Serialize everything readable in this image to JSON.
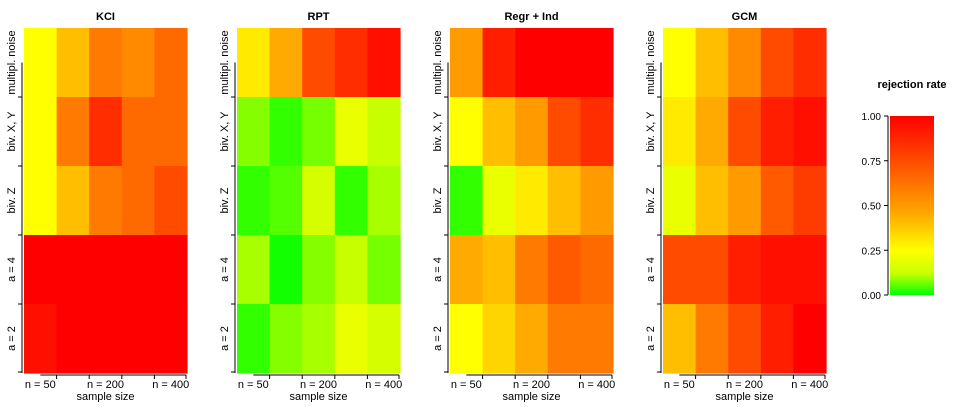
{
  "chart_data": {
    "type": "heatmap",
    "x_categories": [
      "n = 50",
      "",
      "n = 200",
      "",
      "n = 400"
    ],
    "x_ticks": [
      "n = 50",
      "n = 200",
      "n = 400"
    ],
    "y_categories": [
      "multipl. noise",
      "biv. X, Y",
      "biv. Z",
      "a = 4",
      "a = 2"
    ],
    "xlabel": "sample size",
    "panels": [
      {
        "title": "KCI",
        "values": [
          [
            0.25,
            0.4,
            0.6,
            0.55,
            0.65
          ],
          [
            0.25,
            0.6,
            0.85,
            0.65,
            0.65
          ],
          [
            0.25,
            0.4,
            0.6,
            0.65,
            0.75
          ],
          [
            1.0,
            1.0,
            1.0,
            1.0,
            1.0
          ],
          [
            0.95,
            1.0,
            1.0,
            1.0,
            1.0
          ]
        ]
      },
      {
        "title": "RPT",
        "values": [
          [
            0.3,
            0.45,
            0.75,
            0.85,
            0.95
          ],
          [
            0.08,
            0.03,
            0.07,
            0.2,
            0.12
          ],
          [
            0.03,
            0.05,
            0.15,
            0.03,
            0.1
          ],
          [
            0.1,
            0.01,
            0.08,
            0.12,
            0.07
          ],
          [
            0.03,
            0.08,
            0.1,
            0.2,
            0.15
          ]
        ]
      },
      {
        "title": "Regr + Ind",
        "values": [
          [
            0.5,
            0.9,
            1.0,
            1.0,
            1.0
          ],
          [
            0.25,
            0.4,
            0.5,
            0.75,
            0.85
          ],
          [
            0.03,
            0.2,
            0.3,
            0.4,
            0.5
          ],
          [
            0.45,
            0.4,
            0.6,
            0.7,
            0.65
          ],
          [
            0.25,
            0.35,
            0.45,
            0.6,
            0.6
          ]
        ]
      },
      {
        "title": "GCM",
        "values": [
          [
            0.25,
            0.4,
            0.55,
            0.75,
            0.85
          ],
          [
            0.3,
            0.45,
            0.75,
            0.9,
            0.95
          ],
          [
            0.2,
            0.4,
            0.5,
            0.7,
            0.8
          ],
          [
            0.75,
            0.75,
            0.9,
            0.95,
            0.95
          ],
          [
            0.4,
            0.6,
            0.75,
            0.9,
            1.0
          ]
        ]
      }
    ],
    "colorbar": {
      "title": "rejection rate",
      "range": [
        0,
        1
      ],
      "ticks": [
        "1.00",
        "0.75",
        "0.50",
        "0.25",
        "0.00"
      ],
      "colors": [
        "#00ff00",
        "#ffff00",
        "#ff0000"
      ],
      "placement": "right"
    }
  }
}
